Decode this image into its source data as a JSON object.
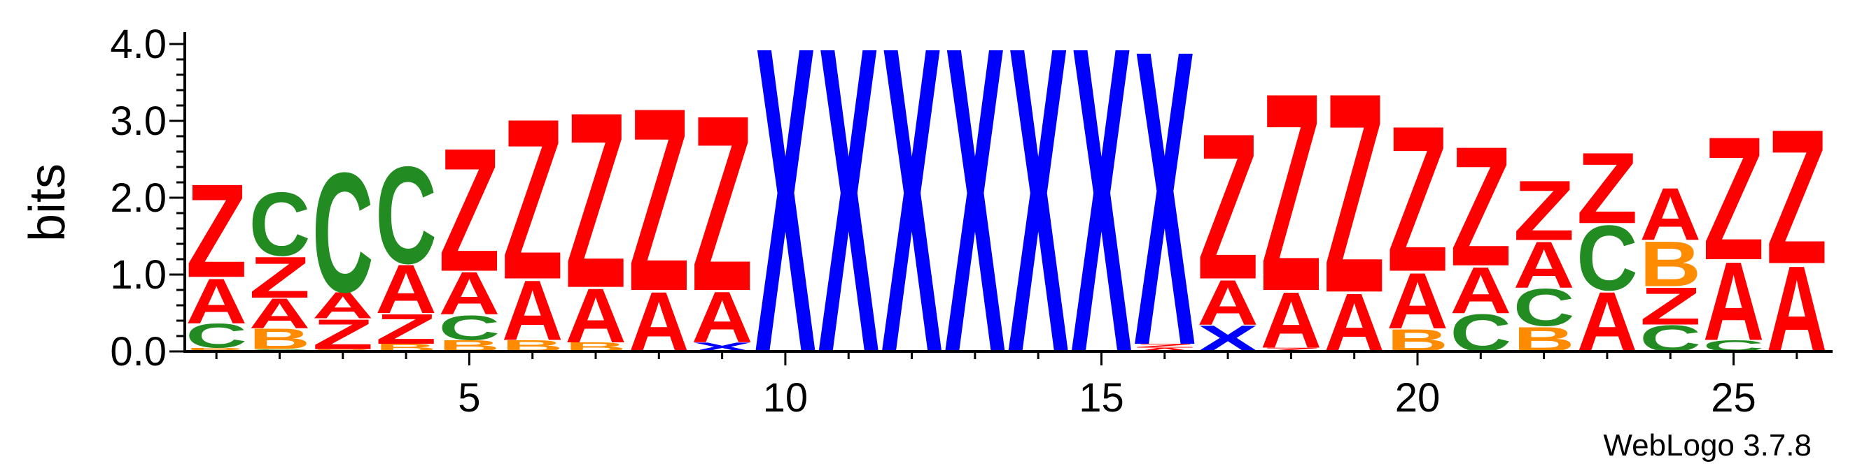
{
  "chart_data": {
    "type": "sequence-logo",
    "ylabel": "bits",
    "ylim": [
      0,
      4.1
    ],
    "yticks": [
      {
        "value": 0.0,
        "label": "0.0"
      },
      {
        "value": 1.0,
        "label": "1.0"
      },
      {
        "value": 2.0,
        "label": "2.0"
      },
      {
        "value": 3.0,
        "label": "3.0"
      },
      {
        "value": 4.0,
        "label": "4.0"
      }
    ],
    "xlim": [
      0.5,
      26.5
    ],
    "xticks": [
      {
        "value": 5,
        "label": "5"
      },
      {
        "value": 10,
        "label": "10"
      },
      {
        "value": 15,
        "label": "15"
      },
      {
        "value": 20,
        "label": "20"
      },
      {
        "value": 25,
        "label": "25"
      }
    ],
    "credit": "WebLogo 3.7.8",
    "colors": {
      "A": "#ff0000",
      "Z": "#ff0000",
      "B": "#ff8c00",
      "C": "#228b22",
      "X": "#0000ff"
    },
    "positions": [
      {
        "pos": 1,
        "stack": [
          [
            "B",
            0.05
          ],
          [
            "C",
            0.32
          ],
          [
            "A",
            0.6
          ],
          [
            "Z",
            1.25
          ]
        ]
      },
      {
        "pos": 2,
        "stack": [
          [
            "C",
            0.03
          ],
          [
            "B",
            0.27
          ],
          [
            "A",
            0.4
          ],
          [
            "Z",
            0.55
          ],
          [
            "C",
            0.85
          ]
        ]
      },
      {
        "pos": 3,
        "stack": [
          [
            "B",
            0.03
          ],
          [
            "Z",
            0.4
          ],
          [
            "A",
            0.35
          ],
          [
            "C",
            1.6
          ]
        ]
      },
      {
        "pos": 4,
        "stack": [
          [
            "B",
            0.1
          ],
          [
            "Z",
            0.4
          ],
          [
            "A",
            0.65
          ],
          [
            "C",
            1.3
          ]
        ]
      },
      {
        "pos": 5,
        "stack": [
          [
            "B",
            0.15
          ],
          [
            "C",
            0.33
          ],
          [
            "A",
            0.57
          ],
          [
            "Z",
            1.65
          ]
        ]
      },
      {
        "pos": 6,
        "stack": [
          [
            "B",
            0.15
          ],
          [
            "A",
            0.8
          ],
          [
            "Z",
            2.15
          ]
        ]
      },
      {
        "pos": 7,
        "stack": [
          [
            "B",
            0.12
          ],
          [
            "A",
            0.72
          ],
          [
            "Z",
            2.35
          ]
        ]
      },
      {
        "pos": 8,
        "stack": [
          [
            "A",
            0.8
          ],
          [
            "Z",
            2.45
          ]
        ]
      },
      {
        "pos": 9,
        "stack": [
          [
            "X",
            0.12
          ],
          [
            "A",
            0.68
          ],
          [
            "Z",
            2.35
          ]
        ]
      },
      {
        "pos": 10,
        "stack": [
          [
            "X",
            4.1
          ]
        ]
      },
      {
        "pos": 11,
        "stack": [
          [
            "X",
            4.1
          ]
        ]
      },
      {
        "pos": 12,
        "stack": [
          [
            "X",
            4.1
          ]
        ]
      },
      {
        "pos": 13,
        "stack": [
          [
            "X",
            4.1
          ]
        ]
      },
      {
        "pos": 14,
        "stack": [
          [
            "X",
            4.1
          ]
        ]
      },
      {
        "pos": 15,
        "stack": [
          [
            "X",
            4.1
          ]
        ]
      },
      {
        "pos": 16,
        "stack": [
          [
            "A",
            0.05
          ],
          [
            "Z",
            0.05
          ],
          [
            "X",
            3.95
          ]
        ]
      },
      {
        "pos": 17,
        "stack": [
          [
            "X",
            0.35
          ],
          [
            "A",
            0.6
          ],
          [
            "Z",
            1.95
          ]
        ]
      },
      {
        "pos": 18,
        "stack": [
          [
            "Z",
            0.05
          ],
          [
            "A",
            0.75
          ],
          [
            "Z",
            2.65
          ]
        ]
      },
      {
        "pos": 19,
        "stack": [
          [
            "A",
            0.78
          ],
          [
            "Z",
            2.67
          ]
        ]
      },
      {
        "pos": 20,
        "stack": [
          [
            "B",
            0.3
          ],
          [
            "A",
            0.75
          ],
          [
            "Z",
            1.95
          ]
        ]
      },
      {
        "pos": 21,
        "stack": [
          [
            "C",
            0.5
          ],
          [
            "A",
            0.62
          ],
          [
            "Z",
            1.6
          ]
        ]
      },
      {
        "pos": 22,
        "stack": [
          [
            "B",
            0.33
          ],
          [
            "C",
            0.5
          ],
          [
            "A",
            0.62
          ],
          [
            "Z",
            0.8
          ]
        ]
      },
      {
        "pos": 23,
        "stack": [
          [
            "A",
            0.8
          ],
          [
            "C",
            0.87
          ],
          [
            "Z",
            0.95
          ]
        ]
      },
      {
        "pos": 24,
        "stack": [
          [
            "C",
            0.35
          ],
          [
            "Z",
            0.5
          ],
          [
            "B",
            0.6
          ],
          [
            "A",
            0.7
          ]
        ]
      },
      {
        "pos": 25,
        "stack": [
          [
            "C",
            0.15
          ],
          [
            "A",
            1.05
          ],
          [
            "Z",
            1.65
          ]
        ]
      },
      {
        "pos": 26,
        "stack": [
          [
            "A",
            1.15
          ],
          [
            "Z",
            1.8
          ]
        ]
      }
    ]
  }
}
